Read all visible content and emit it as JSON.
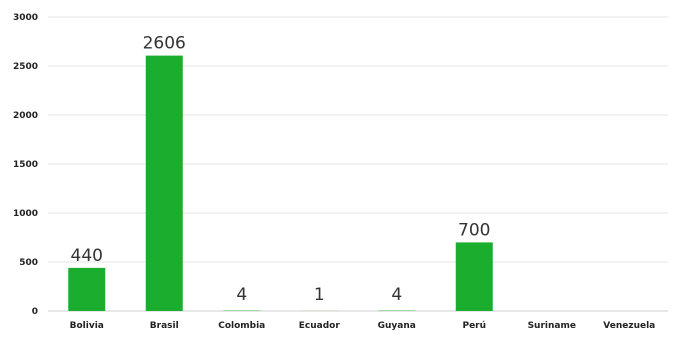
{
  "chart_data": {
    "type": "bar",
    "categories": [
      "Bolivia",
      "Brasil",
      "Colombia",
      "Ecuador",
      "Guyana",
      "Perú",
      "Suriname",
      "Venezuela"
    ],
    "values": [
      440,
      2606,
      4,
      1,
      4,
      700,
      null,
      null
    ],
    "data_labels": [
      "440",
      "2606",
      "4",
      "1",
      "4",
      "700",
      "",
      ""
    ],
    "ylim": [
      0,
      3000
    ],
    "yticks": [
      0,
      500,
      1000,
      1500,
      2000,
      2500,
      3000
    ],
    "grid": true,
    "bar_color": "#1aad2e",
    "title": "",
    "xlabel": "",
    "ylabel": ""
  }
}
